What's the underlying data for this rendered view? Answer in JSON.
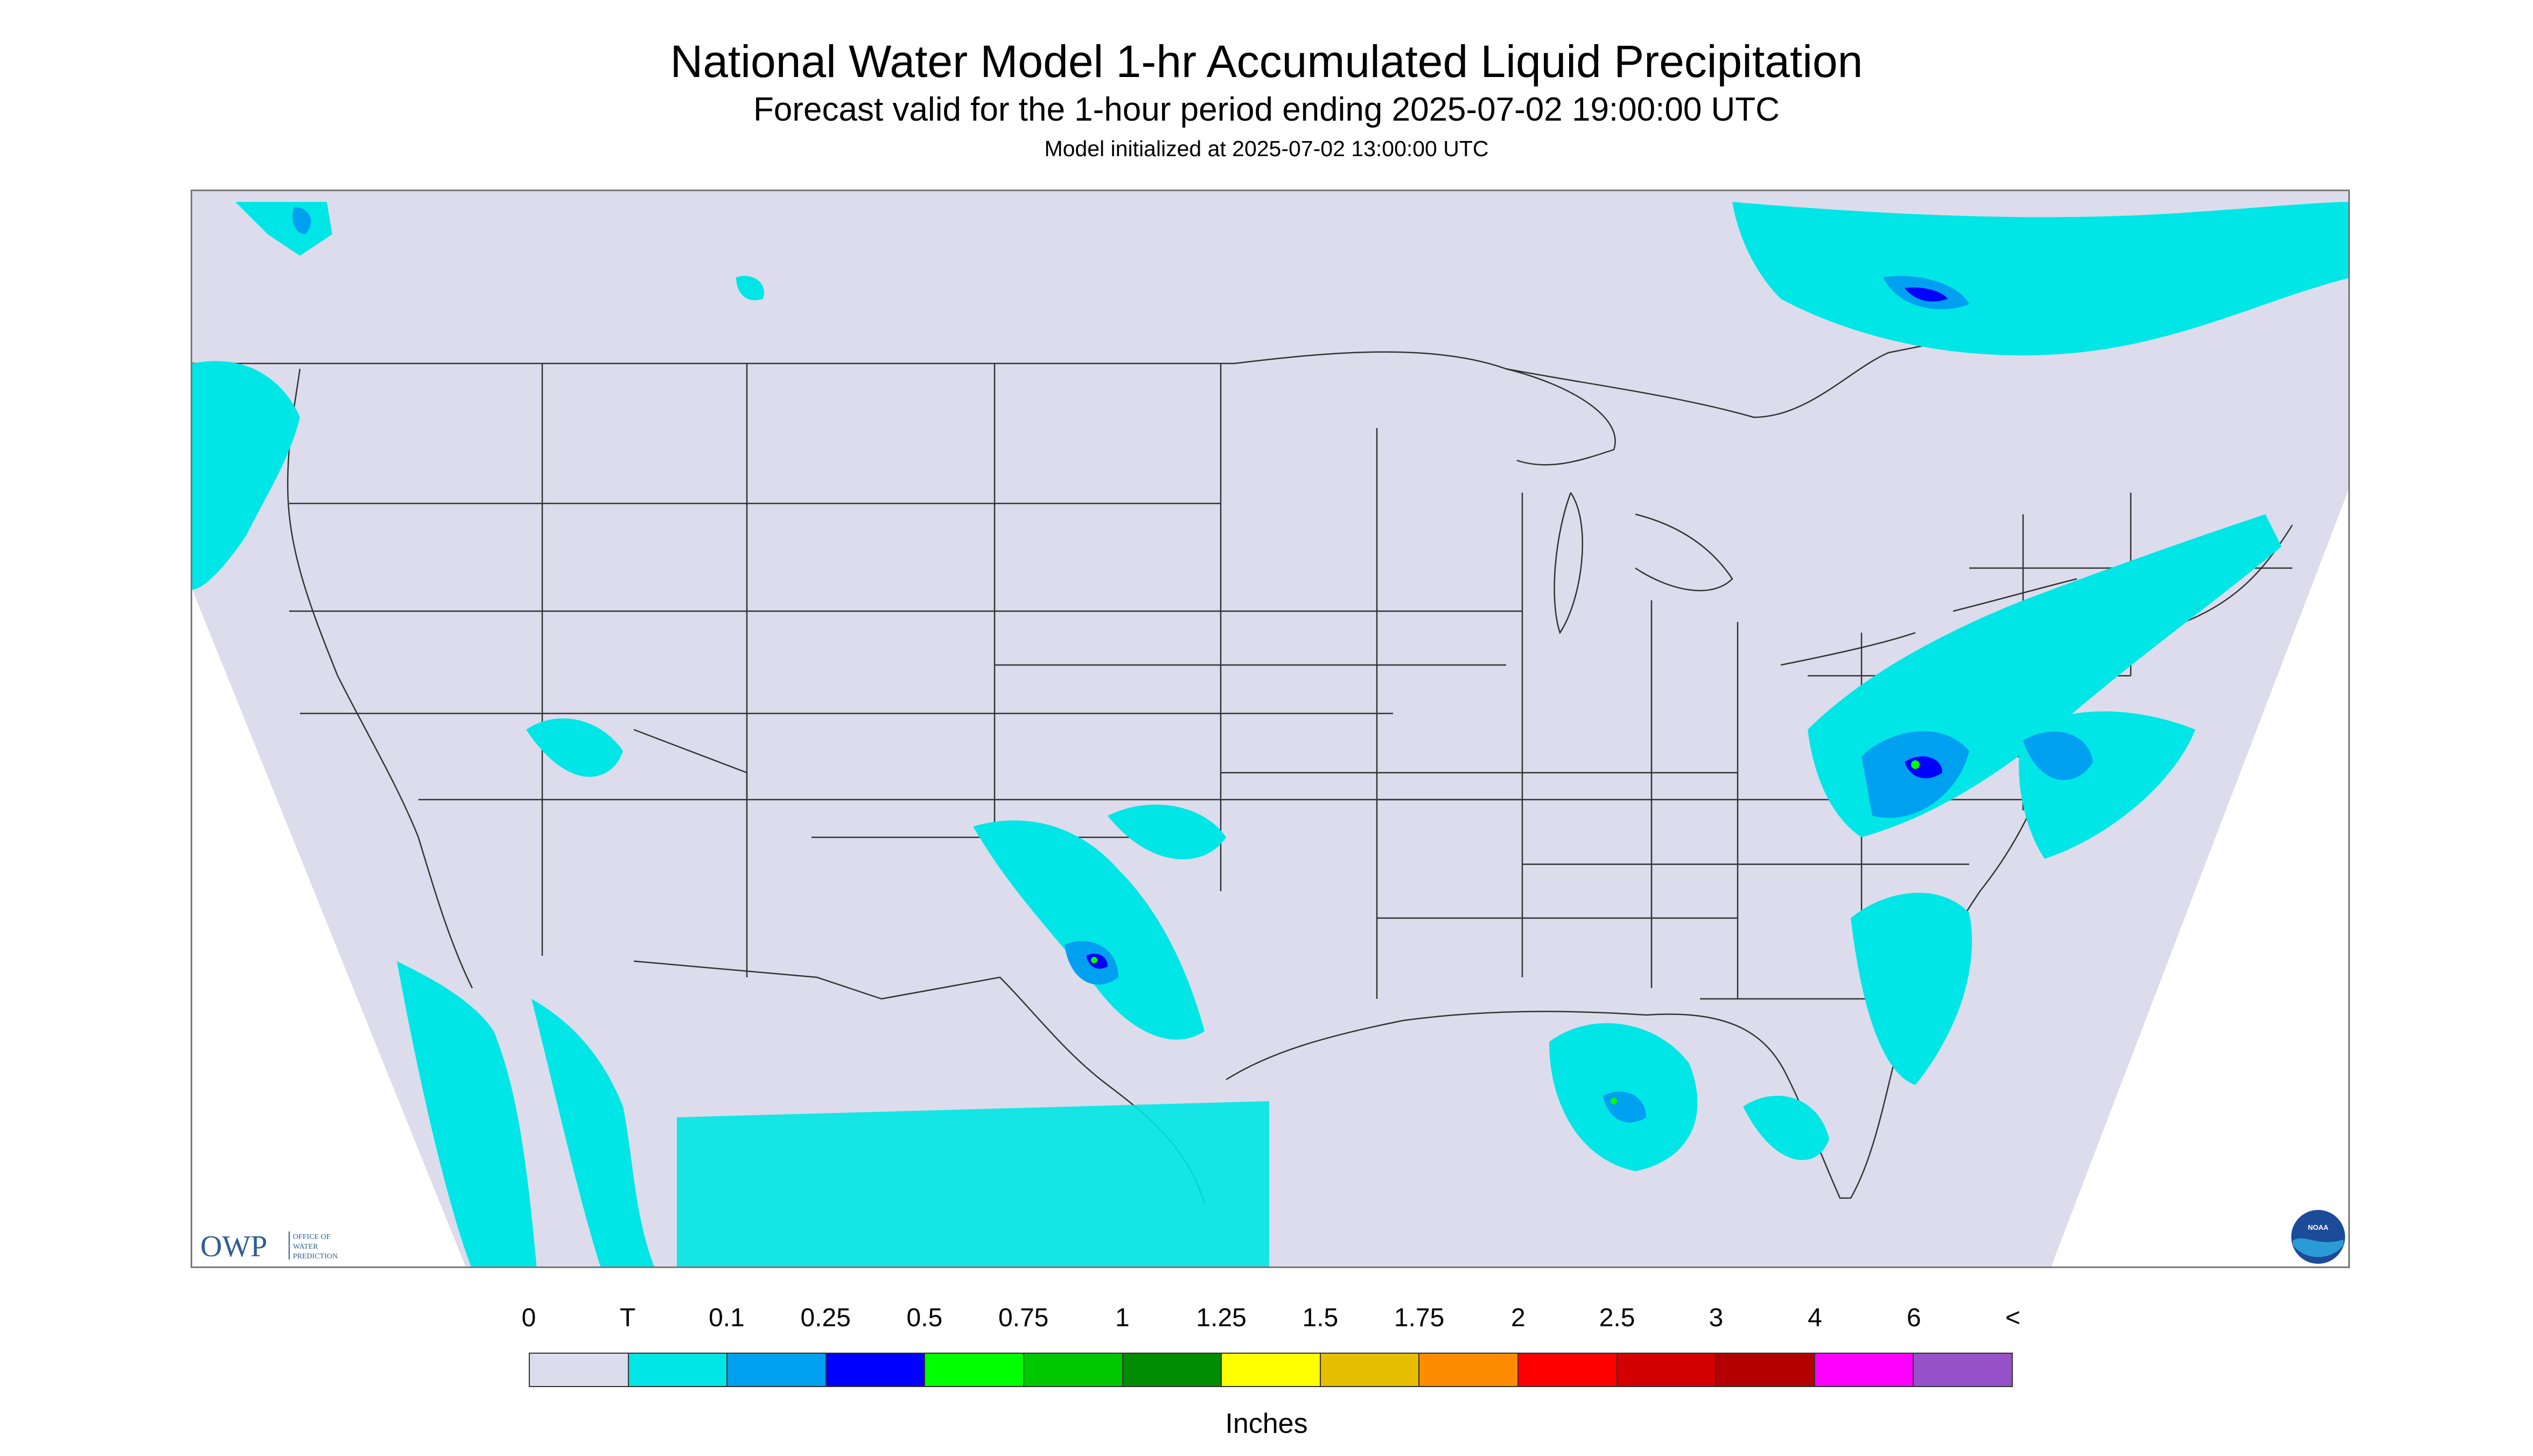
{
  "header": {
    "title": "National Water Model 1-hr Accumulated Liquid Precipitation",
    "subtitle": "Forecast valid for the 1-hour period ending 2025-07-02 19:00:00 UTC",
    "initialized": "Model initialized at 2025-07-02 13:00:00 UTC"
  },
  "map": {
    "projection": "conic CONUS domain",
    "background_color": "#dcdcec",
    "outside_domain_color": "#ffffff",
    "boundary_color": "#333333"
  },
  "logos": {
    "owp": {
      "text": "OWP",
      "subtext_lines": [
        "OFFICE OF",
        "WATER",
        "PREDICTION"
      ]
    },
    "noaa": {
      "text": "NOAA"
    }
  },
  "legend": {
    "labels": [
      "0",
      "T",
      "0.1",
      "0.25",
      "0.5",
      "0.75",
      "1",
      "1.25",
      "1.5",
      "1.75",
      "2",
      "2.5",
      "3",
      "4",
      "6",
      "<"
    ],
    "colors": [
      "#dcdcec",
      "#00e6e6",
      "#00a0f0",
      "#0000ff",
      "#00ff00",
      "#00c800",
      "#008c00",
      "#ffff00",
      "#e6be00",
      "#ff8c00",
      "#ff0000",
      "#d20000",
      "#b40000",
      "#ff00ff",
      "#9650c8"
    ],
    "units": "Inches"
  }
}
